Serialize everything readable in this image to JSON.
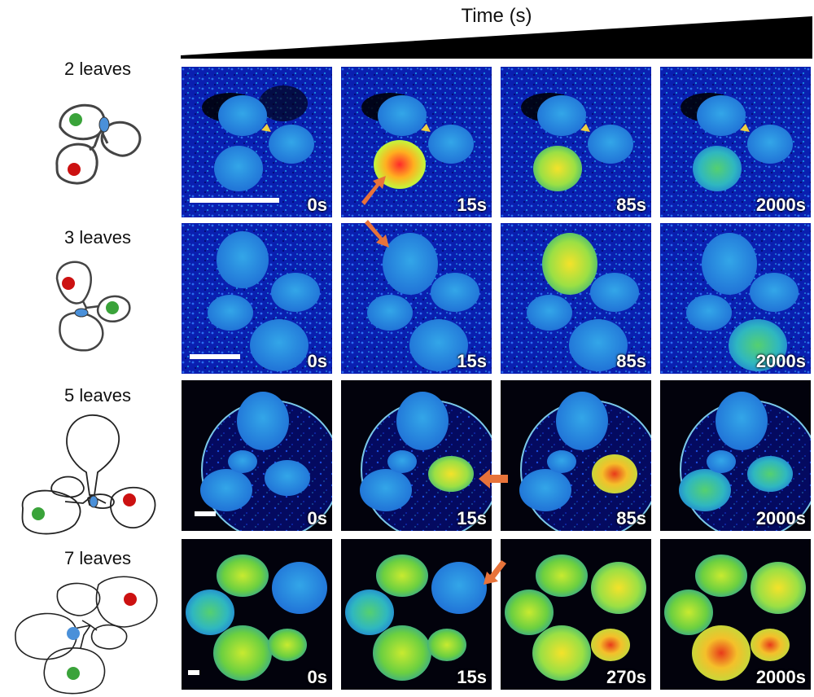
{
  "header": {
    "title": "Time (s)"
  },
  "rows": [
    {
      "label": "2 leaves",
      "times": [
        "0s",
        "15s",
        "85s",
        "2000s"
      ]
    },
    {
      "label": "3 leaves",
      "times": [
        "0s",
        "15s",
        "85s",
        "2000s"
      ]
    },
    {
      "label": "5 leaves",
      "times": [
        "0s",
        "15s",
        "85s",
        "2000s"
      ]
    },
    {
      "label": "7 leaves",
      "times": [
        "0s",
        "15s",
        "270s",
        "2000s"
      ]
    }
  ],
  "colors": {
    "local_leaf_dot": "#cc1111",
    "distal_leaf_dot": "#3aa33a",
    "apex_dot": "#4a90d9",
    "arrow": "#e8733a",
    "background_blue": "#0a1fb0"
  }
}
